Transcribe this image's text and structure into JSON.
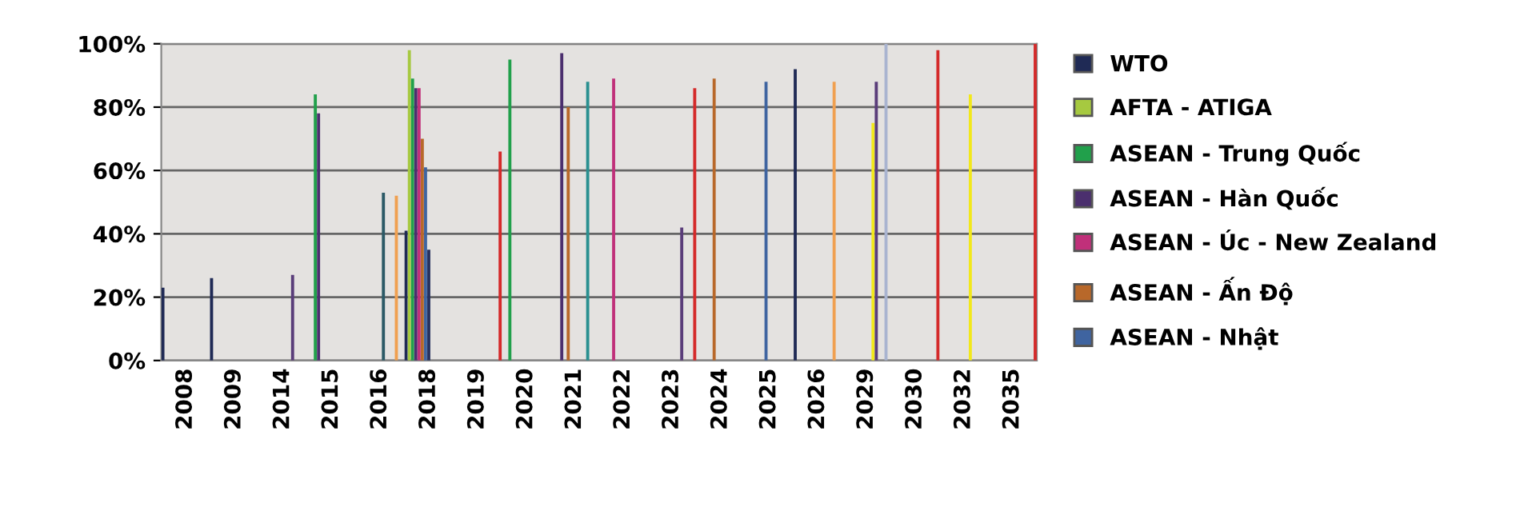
{
  "chart_data": {
    "type": "bar",
    "categories": [
      "2008",
      "2009",
      "2014",
      "2015",
      "2016",
      "2018",
      "2019",
      "2020",
      "2021",
      "2022",
      "2023",
      "2024",
      "2025",
      "2026",
      "2029",
      "2030",
      "2032",
      "2035"
    ],
    "series": [
      {
        "name": "WTO",
        "color": "#1f2a55",
        "values": [
          23,
          26,
          null,
          null,
          null,
          41,
          null,
          null,
          null,
          null,
          null,
          null,
          null,
          92,
          null,
          null,
          null,
          null
        ]
      },
      {
        "name": "AFTA - ATIGA",
        "color": "#a6c940",
        "values": [
          null,
          null,
          null,
          null,
          null,
          98,
          null,
          null,
          null,
          null,
          null,
          null,
          null,
          null,
          null,
          null,
          null,
          null
        ]
      },
      {
        "name": "ASEAN - Trung Quốc",
        "color": "#21a04b",
        "values": [
          null,
          null,
          null,
          84,
          null,
          89,
          null,
          95,
          null,
          null,
          null,
          null,
          null,
          null,
          null,
          null,
          null,
          null
        ]
      },
      {
        "name": "ASEAN - Hàn Quốc",
        "color": "#4b2f6e",
        "values": [
          null,
          null,
          null,
          78,
          null,
          86,
          null,
          null,
          97,
          null,
          null,
          null,
          null,
          null,
          null,
          null,
          null,
          null
        ]
      },
      {
        "name": "ASEAN - Úc - New Zealand",
        "color": "#c0307a",
        "values": [
          null,
          null,
          null,
          null,
          null,
          86,
          null,
          null,
          null,
          89,
          null,
          null,
          null,
          null,
          null,
          null,
          null,
          null
        ]
      },
      {
        "name": "ASEAN - Ấn Độ",
        "color": "#b8682a",
        "values": [
          null,
          null,
          null,
          null,
          null,
          70,
          null,
          null,
          80,
          null,
          null,
          89,
          null,
          null,
          null,
          null,
          null,
          null
        ]
      },
      {
        "name": "ASEAN - Nhật",
        "color": "#3f64a0",
        "values": [
          null,
          null,
          null,
          null,
          null,
          61,
          null,
          null,
          null,
          null,
          null,
          null,
          88,
          null,
          null,
          null,
          null,
          null
        ]
      },
      {
        "color": "#26305e",
        "values": [
          null,
          null,
          null,
          null,
          null,
          35,
          null,
          null,
          null,
          null,
          null,
          null,
          null,
          null,
          null,
          null,
          null,
          null
        ]
      },
      {
        "color": "#2b5966",
        "values": [
          null,
          null,
          null,
          null,
          53,
          null,
          null,
          null,
          null,
          null,
          null,
          null,
          null,
          null,
          null,
          null,
          null,
          null
        ]
      },
      {
        "color": "#f2e81a",
        "values": [
          null,
          null,
          null,
          null,
          null,
          null,
          null,
          null,
          null,
          null,
          null,
          null,
          null,
          null,
          75,
          null,
          84,
          null
        ]
      },
      {
        "color": "#5a3d7a",
        "values": [
          null,
          null,
          27,
          null,
          null,
          null,
          null,
          null,
          null,
          null,
          42,
          null,
          null,
          null,
          88,
          null,
          null,
          null
        ]
      },
      {
        "color": "#2a9090",
        "values": [
          null,
          null,
          null,
          null,
          null,
          null,
          null,
          null,
          88,
          null,
          null,
          null,
          null,
          null,
          null,
          null,
          null,
          null
        ]
      },
      {
        "color": "#f0a050",
        "values": [
          null,
          null,
          null,
          null,
          52,
          null,
          null,
          null,
          null,
          null,
          null,
          null,
          null,
          88,
          null,
          null,
          null,
          null
        ]
      },
      {
        "color": "#a9b4d0",
        "values": [
          null,
          null,
          null,
          null,
          null,
          null,
          null,
          null,
          null,
          null,
          null,
          null,
          null,
          null,
          100,
          null,
          null,
          null
        ]
      },
      {
        "color": "#d42a2a",
        "values": [
          null,
          null,
          null,
          null,
          null,
          null,
          66,
          null,
          null,
          null,
          86,
          null,
          null,
          null,
          null,
          98,
          null,
          100
        ]
      }
    ],
    "ylim": [
      0,
      100
    ],
    "yticks": [
      {
        "value": 0,
        "label": "0%"
      },
      {
        "value": 20,
        "label": "20%"
      },
      {
        "value": 40,
        "label": "40%"
      },
      {
        "value": 60,
        "label": "60%"
      },
      {
        "value": 80,
        "label": "80%"
      },
      {
        "value": 100,
        "label": "100%"
      }
    ],
    "grid": "y",
    "legend": "right"
  }
}
